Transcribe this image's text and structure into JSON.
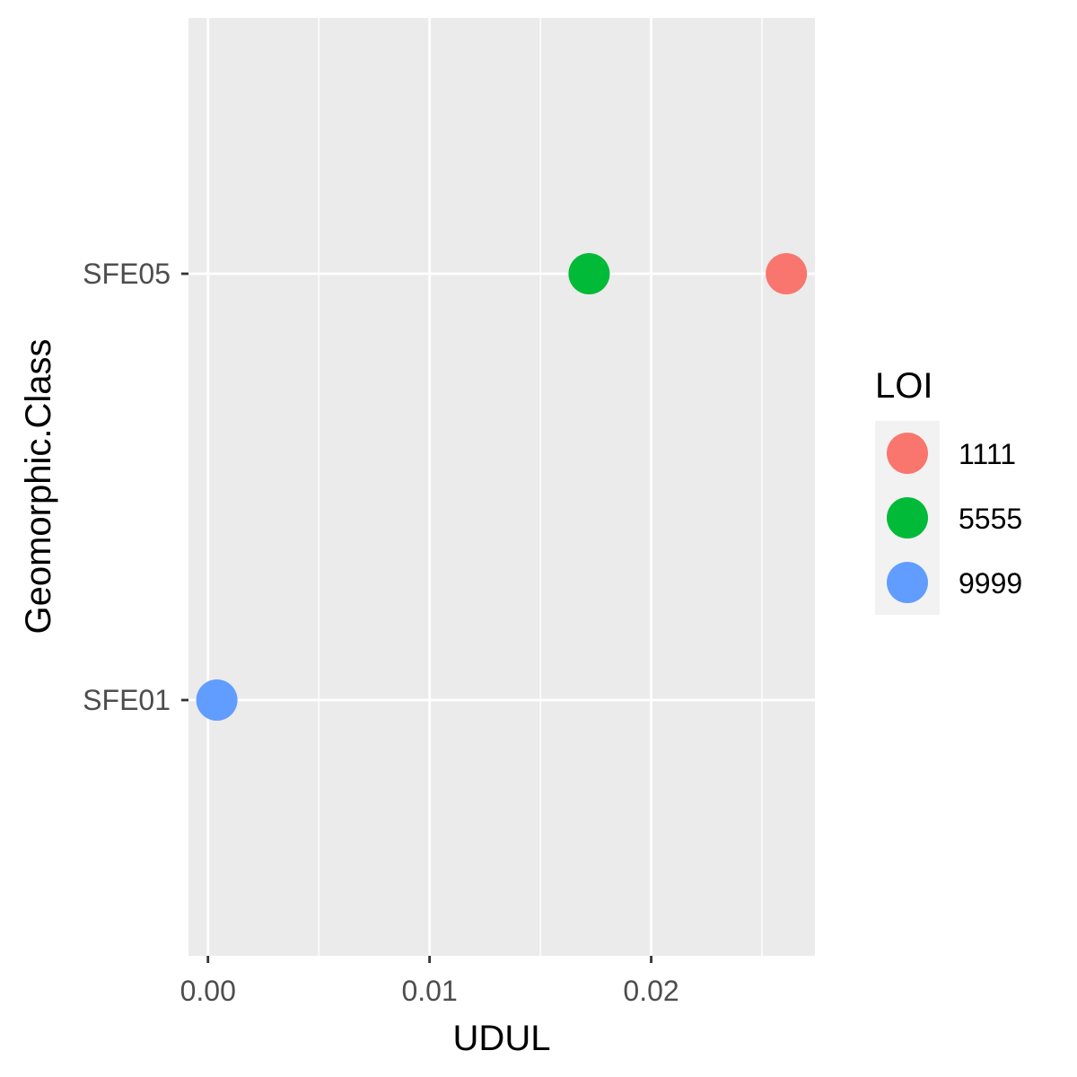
{
  "chart_data": {
    "type": "scatter",
    "xlabel": "UDUL",
    "ylabel": "Geomorphic.Class",
    "xlim": [
      -0.00088,
      0.02739
    ],
    "x_ticks": [
      0.0,
      0.01,
      0.02
    ],
    "x_tick_labels": [
      "0.00",
      "0.01",
      "0.02"
    ],
    "categories": [
      "SFE01",
      "SFE05"
    ],
    "grid": true,
    "background": "#ebebeb",
    "legend": {
      "title": "LOI",
      "placement": "right"
    },
    "series": [
      {
        "name": "1111",
        "color": "#F8766D",
        "points": [
          {
            "x": 0.0261,
            "y": "SFE05"
          }
        ]
      },
      {
        "name": "5555",
        "color": "#00BA38",
        "points": [
          {
            "x": 0.0172,
            "y": "SFE05"
          }
        ]
      },
      {
        "name": "9999",
        "color": "#619CFF",
        "points": [
          {
            "x": 0.0004,
            "y": "SFE01"
          }
        ]
      }
    ]
  }
}
